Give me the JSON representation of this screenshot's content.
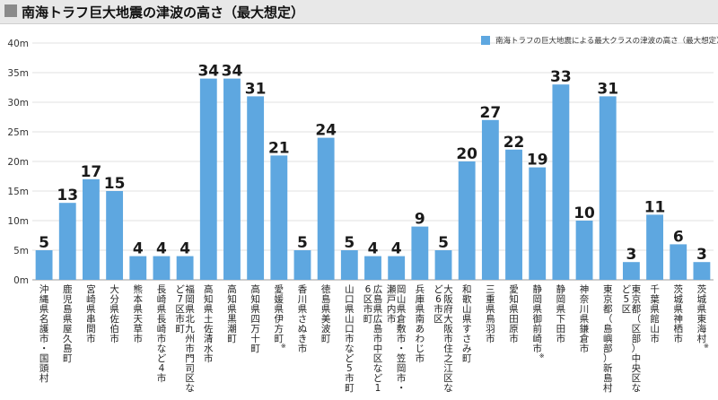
{
  "header": {
    "title": "南海トラフ巨大地震の津波の高さ（最大想定）"
  },
  "chart_data": {
    "type": "bar",
    "title": "南海トラフ巨大地震の津波の高さ（最大想定）",
    "legend": {
      "position": "top-right",
      "label": "南海トラフの巨大地震による最大クラスの津波の高さ（最大想定）"
    },
    "ylim": [
      0,
      40
    ],
    "yticks": [
      "0m",
      "5m",
      "10m",
      "15m",
      "20m",
      "25m",
      "30m",
      "35m",
      "40m"
    ],
    "grid": true,
    "bar_color": "#5ea7e0",
    "categories": [
      "沖縄県名護市・国頭村",
      "鹿児島県屋久島町",
      "宮崎県串間市",
      "大分県佐伯市",
      "熊本県天草市",
      "長崎県長崎市など4市",
      "福岡県北九州市門司区など7区市町",
      "高知県土佐清水市",
      "高知県黒潮町",
      "高知県四万十町",
      "愛媛県伊方町※",
      "香川県さぬき市",
      "徳島県美波町",
      "山口県山口市など5市町",
      "広島県広島市中区など16区市町",
      "岡山県倉敷市・笠岡市・瀬戸内市",
      "兵庫県南あわじ市",
      "大阪府大阪市住之江区など6市区",
      "和歌山県すさみ町",
      "三重県鳥羽市",
      "愛知県田原市",
      "静岡県御前崎市※",
      "静岡県下田市",
      "神奈川県鎌倉市",
      "東京都（島嶼部）新島村",
      "東京都（区部）中央区など5区",
      "千葉県館山市",
      "茨城県神栖市",
      "茨城県東海村※"
    ],
    "values": [
      5,
      13,
      17,
      15,
      4,
      4,
      4,
      34,
      34,
      31,
      21,
      5,
      24,
      5,
      4,
      4,
      9,
      5,
      20,
      27,
      22,
      19,
      33,
      10,
      31,
      3,
      11,
      6,
      3
    ],
    "value_labels": [
      "5",
      "13",
      "17",
      "15",
      "4",
      "4",
      "4",
      "34",
      "34",
      "31",
      "21",
      "5",
      "24",
      "5",
      "4",
      "4",
      "9",
      "5",
      "20",
      "27",
      "22",
      "19",
      "33",
      "10",
      "31",
      "3",
      "11",
      "6",
      "3"
    ]
  }
}
